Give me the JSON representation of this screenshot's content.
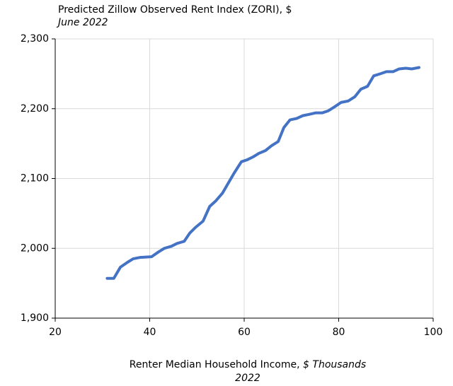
{
  "chart_data": {
    "type": "line",
    "title": "Predicted Zillow Observed Rent Index (ZORI), $",
    "subtitle": "June 2022",
    "x_label": "Renter Median Household Income,",
    "x_label_unit": "$ Thousands",
    "x_label_year": "2022",
    "series": [
      {
        "name": "Predicted ZORI",
        "color": "#4472c4",
        "x": [
          31,
          32.4,
          33.8,
          35.3,
          36.5,
          38,
          40.4,
          41.9,
          43.1,
          44.6,
          45.8,
          47.3,
          48.5,
          49.7,
          51.3,
          52.7,
          54,
          55.4,
          56.6,
          57.8,
          59.4,
          60.7,
          61.9,
          63.1,
          64.5,
          65.8,
          67.2,
          68.4,
          69.7,
          71.1,
          72.4,
          73.8,
          75.1,
          76.5,
          77.8,
          79.2,
          80.5,
          82,
          83.4,
          84.7,
          86.1,
          87.4,
          88.8,
          90.1,
          91.5,
          92.8,
          94.2,
          95.5,
          97
        ],
        "values": [
          1957,
          1957,
          1973,
          1980,
          1985,
          1987,
          1988,
          1995,
          2000,
          2003,
          2007,
          2010,
          2022,
          2030,
          2039,
          2060,
          2068,
          2079,
          2093,
          2107,
          2124,
          2127,
          2131,
          2136,
          2140,
          2147,
          2153,
          2173,
          2184,
          2186,
          2190,
          2192,
          2194,
          2194,
          2197,
          2203,
          2209,
          2211,
          2217,
          2228,
          2232,
          2247,
          2250,
          2253,
          2253,
          2257,
          2258,
          2257,
          2259
        ]
      }
    ],
    "xlim": [
      20,
      100
    ],
    "xticks": [
      20,
      40,
      60,
      80,
      100
    ],
    "ylim": [
      1900,
      2300
    ],
    "yticks": [
      {
        "value": 1900,
        "label": "1,900"
      },
      {
        "value": 2000,
        "label": "2,000"
      },
      {
        "value": 2100,
        "label": "2,100"
      },
      {
        "value": 2200,
        "label": "2,200"
      },
      {
        "value": 2300,
        "label": "2,300"
      }
    ],
    "grid": true
  }
}
